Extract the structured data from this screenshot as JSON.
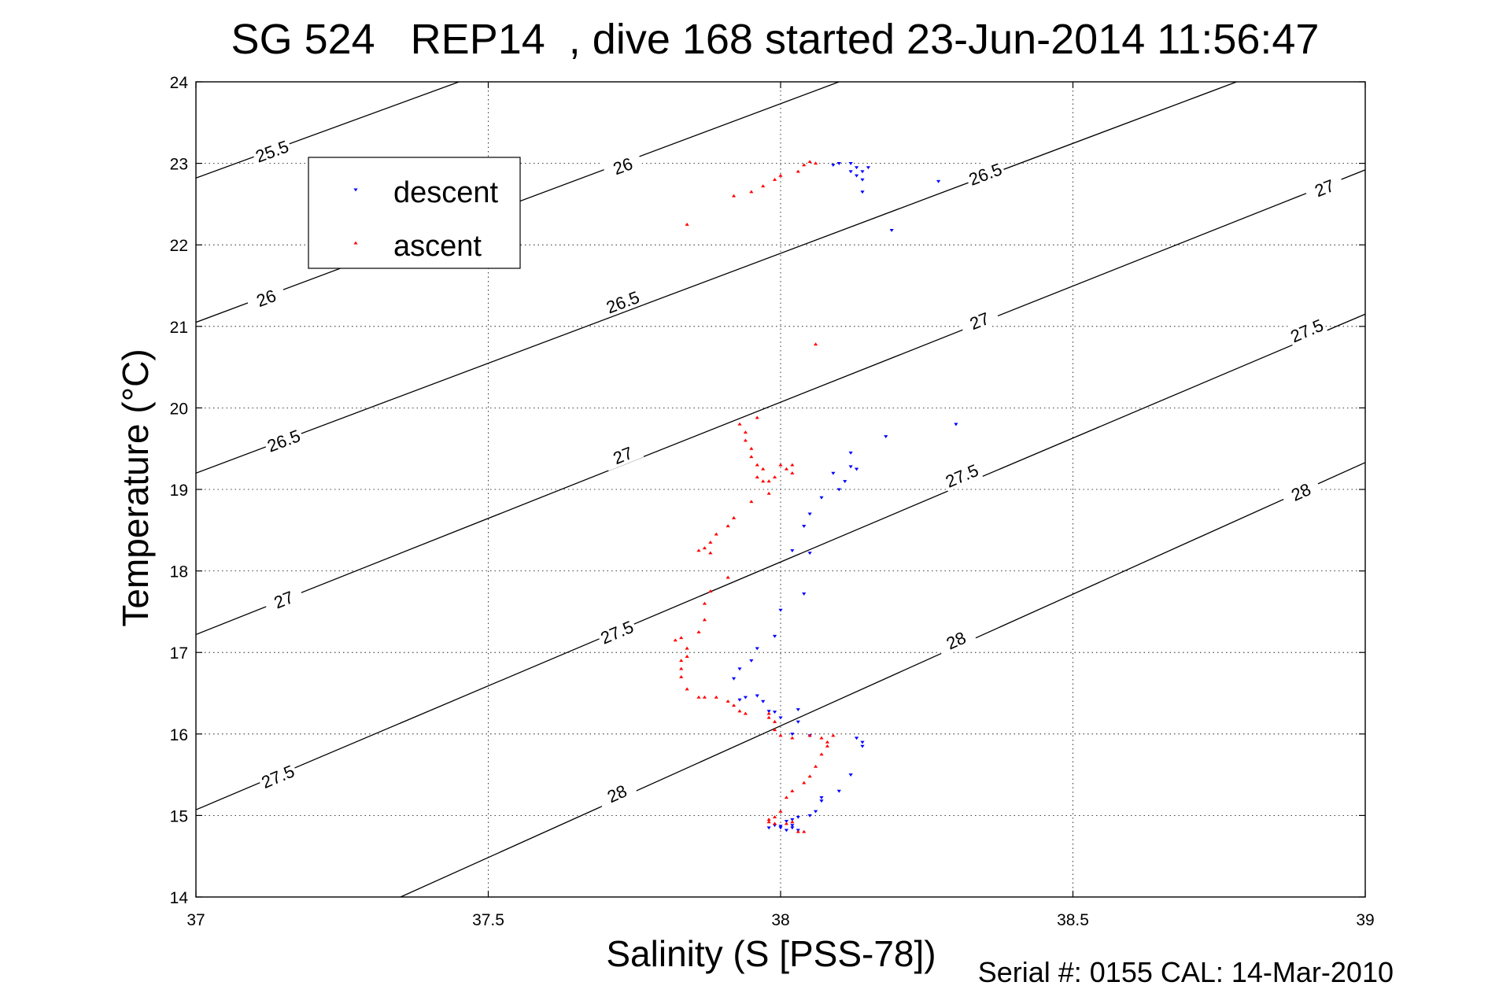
{
  "chart_data": {
    "type": "scatter",
    "title": "SG 524   REP14  , dive 168 started 23-Jun-2014 11:56:47",
    "xlabel": "Salinity (S [PSS-78])",
    "ylabel": "Temperature (°C)",
    "footer": "Serial #: 0155  CAL: 14-Mar-2010",
    "xlim": [
      37,
      39
    ],
    "ylim": [
      14,
      24
    ],
    "xticks": [
      "37",
      "37.5",
      "38",
      "38.5",
      "39"
    ],
    "yticks": [
      "14",
      "15",
      "16",
      "17",
      "18",
      "19",
      "20",
      "21",
      "22",
      "23",
      "24"
    ],
    "grid": true,
    "legend_position": "top-left",
    "colors": {
      "descent": "#0000ff",
      "ascent": "#ff0000",
      "contour": "#000000"
    },
    "contours": [
      {
        "level": "25.5",
        "points": [
          [
            37,
            22.82
          ],
          [
            37.45,
            24
          ]
        ],
        "labels": [
          [
            37.13,
            23.15
          ]
        ]
      },
      {
        "level": "26",
        "points": [
          [
            37,
            21.05
          ],
          [
            38.1,
            24
          ]
        ],
        "labels": [
          [
            37.12,
            21.35
          ],
          [
            37.73,
            22.97
          ]
        ]
      },
      {
        "level": "26.5",
        "points": [
          [
            37,
            19.2
          ],
          [
            38.78,
            24
          ]
        ],
        "labels": [
          [
            37.15,
            19.6
          ],
          [
            37.73,
            21.3
          ],
          [
            38.35,
            22.87
          ]
        ]
      },
      {
        "level": "27",
        "points": [
          [
            37,
            17.22
          ],
          [
            39,
            22.92
          ]
        ],
        "labels": [
          [
            37.15,
            17.65
          ],
          [
            37.73,
            19.42
          ],
          [
            38.34,
            21.07
          ],
          [
            38.93,
            22.7
          ]
        ]
      },
      {
        "level": "27.5",
        "points": [
          [
            37,
            15.07
          ],
          [
            39,
            21.15
          ]
        ],
        "labels": [
          [
            37.14,
            15.48
          ],
          [
            37.72,
            17.25
          ],
          [
            38.31,
            19.17
          ],
          [
            38.9,
            20.95
          ]
        ]
      },
      {
        "level": "28",
        "points": [
          [
            37.35,
            14
          ],
          [
            39,
            19.33
          ]
        ],
        "labels": [
          [
            37.72,
            15.27
          ],
          [
            38.3,
            17.15
          ],
          [
            38.89,
            18.97
          ]
        ]
      }
    ],
    "series": [
      {
        "name": "descent",
        "marker": "triangle-down",
        "points": [
          [
            38.09,
            22.98
          ],
          [
            38.1,
            23.0
          ],
          [
            38.12,
            23.0
          ],
          [
            38.13,
            22.95
          ],
          [
            38.12,
            22.9
          ],
          [
            38.15,
            22.95
          ],
          [
            38.14,
            22.9
          ],
          [
            38.13,
            22.85
          ],
          [
            38.14,
            22.8
          ],
          [
            38.14,
            22.65
          ],
          [
            38.27,
            22.78
          ],
          [
            38.19,
            22.18
          ],
          [
            38.3,
            19.8
          ],
          [
            38.18,
            19.65
          ],
          [
            38.12,
            19.45
          ],
          [
            38.12,
            19.28
          ],
          [
            38.13,
            19.25
          ],
          [
            38.09,
            19.2
          ],
          [
            38.11,
            19.1
          ],
          [
            38.1,
            19.0
          ],
          [
            38.07,
            18.9
          ],
          [
            38.05,
            18.7
          ],
          [
            38.04,
            18.55
          ],
          [
            38.02,
            18.25
          ],
          [
            38.05,
            18.22
          ],
          [
            38.04,
            17.72
          ],
          [
            38.0,
            17.52
          ],
          [
            37.99,
            17.2
          ],
          [
            37.96,
            17.05
          ],
          [
            37.95,
            16.9
          ],
          [
            37.93,
            16.8
          ],
          [
            37.92,
            16.68
          ],
          [
            37.94,
            16.45
          ],
          [
            37.93,
            16.42
          ],
          [
            37.96,
            16.47
          ],
          [
            37.97,
            16.4
          ],
          [
            37.98,
            16.28
          ],
          [
            37.99,
            16.27
          ],
          [
            38.0,
            16.2
          ],
          [
            38.03,
            16.3
          ],
          [
            38.03,
            16.15
          ],
          [
            38.02,
            16.0
          ],
          [
            38.05,
            15.98
          ],
          [
            38.13,
            15.95
          ],
          [
            38.14,
            15.9
          ],
          [
            38.14,
            15.85
          ],
          [
            38.12,
            15.5
          ],
          [
            38.1,
            15.3
          ],
          [
            38.07,
            15.22
          ],
          [
            38.07,
            15.18
          ],
          [
            38.06,
            15.05
          ],
          [
            38.05,
            15.0
          ],
          [
            38.03,
            14.98
          ],
          [
            38.02,
            14.95
          ],
          [
            38.01,
            14.93
          ],
          [
            38.02,
            14.88
          ],
          [
            38.0,
            14.87
          ],
          [
            37.99,
            14.88
          ],
          [
            38.0,
            14.85
          ],
          [
            38.02,
            14.85
          ],
          [
            38.03,
            14.82
          ],
          [
            37.98,
            14.85
          ],
          [
            38.01,
            14.82
          ]
        ]
      },
      {
        "name": "ascent",
        "marker": "triangle-up",
        "points": [
          [
            37.84,
            22.25
          ],
          [
            37.92,
            22.6
          ],
          [
            37.95,
            22.65
          ],
          [
            37.97,
            22.72
          ],
          [
            37.99,
            22.8
          ],
          [
            38.0,
            22.85
          ],
          [
            38.03,
            22.9
          ],
          [
            38.04,
            22.98
          ],
          [
            38.05,
            23.02
          ],
          [
            38.06,
            23.0
          ],
          [
            38.06,
            20.78
          ],
          [
            37.96,
            19.88
          ],
          [
            37.93,
            19.8
          ],
          [
            37.94,
            19.7
          ],
          [
            37.94,
            19.6
          ],
          [
            37.95,
            19.5
          ],
          [
            37.95,
            19.4
          ],
          [
            37.96,
            19.3
          ],
          [
            37.97,
            19.25
          ],
          [
            37.96,
            19.15
          ],
          [
            37.97,
            19.1
          ],
          [
            37.98,
            19.1
          ],
          [
            37.99,
            19.15
          ],
          [
            38.0,
            19.3
          ],
          [
            38.01,
            19.25
          ],
          [
            38.02,
            19.3
          ],
          [
            38.02,
            19.2
          ],
          [
            37.98,
            18.95
          ],
          [
            37.95,
            18.85
          ],
          [
            37.92,
            18.65
          ],
          [
            37.91,
            18.55
          ],
          [
            37.89,
            18.45
          ],
          [
            37.88,
            18.35
          ],
          [
            37.87,
            18.28
          ],
          [
            37.86,
            18.25
          ],
          [
            37.88,
            18.22
          ],
          [
            37.91,
            17.92
          ],
          [
            37.88,
            17.75
          ],
          [
            37.87,
            17.6
          ],
          [
            37.87,
            17.4
          ],
          [
            37.86,
            17.25
          ],
          [
            37.83,
            17.18
          ],
          [
            37.82,
            17.15
          ],
          [
            37.84,
            17.05
          ],
          [
            37.84,
            16.95
          ],
          [
            37.83,
            16.9
          ],
          [
            37.83,
            16.8
          ],
          [
            37.83,
            16.7
          ],
          [
            37.84,
            16.55
          ],
          [
            37.86,
            16.45
          ],
          [
            37.87,
            16.45
          ],
          [
            37.89,
            16.45
          ],
          [
            37.91,
            16.4
          ],
          [
            37.92,
            16.35
          ],
          [
            37.93,
            16.28
          ],
          [
            37.94,
            16.25
          ],
          [
            37.98,
            16.25
          ],
          [
            37.98,
            16.2
          ],
          [
            37.99,
            16.15
          ],
          [
            37.99,
            16.05
          ],
          [
            38.0,
            15.98
          ],
          [
            38.02,
            15.95
          ],
          [
            38.05,
            15.98
          ],
          [
            38.07,
            15.95
          ],
          [
            38.08,
            15.9
          ],
          [
            38.09,
            15.98
          ],
          [
            38.08,
            15.85
          ],
          [
            38.07,
            15.75
          ],
          [
            38.06,
            15.6
          ],
          [
            38.05,
            15.48
          ],
          [
            38.04,
            15.4
          ],
          [
            38.02,
            15.3
          ],
          [
            38.01,
            15.22
          ],
          [
            38.0,
            15.05
          ],
          [
            37.99,
            14.98
          ],
          [
            37.98,
            14.95
          ],
          [
            37.98,
            14.92
          ],
          [
            37.99,
            14.9
          ],
          [
            38.01,
            14.9
          ],
          [
            38.02,
            14.92
          ],
          [
            38.03,
            14.8
          ],
          [
            38.04,
            14.8
          ]
        ]
      }
    ]
  }
}
